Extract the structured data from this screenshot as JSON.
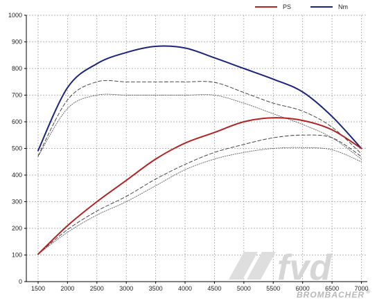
{
  "chart_data": {
    "type": "line",
    "title": "",
    "xlabel": "",
    "ylabel": "",
    "x": [
      1500,
      2000,
      2500,
      3000,
      3500,
      4000,
      4500,
      5000,
      5500,
      6000,
      6500,
      7000
    ],
    "xlim": [
      1300,
      7100
    ],
    "ylim": [
      0,
      1000
    ],
    "x_ticks": [
      1500,
      2000,
      2500,
      3000,
      3500,
      4000,
      4500,
      5000,
      5500,
      6000,
      6500,
      7000
    ],
    "y_ticks": [
      0,
      100,
      200,
      300,
      400,
      500,
      600,
      700,
      800,
      900,
      1000
    ],
    "grid": true,
    "legend_position": "top-right",
    "series": [
      {
        "name": "PS",
        "color": "#b22222",
        "style": "solid",
        "values": [
          103,
          210,
          300,
          380,
          460,
          520,
          560,
          600,
          615,
          605,
          570,
          500
        ]
      },
      {
        "name": "Nm",
        "color": "#1a237e",
        "style": "solid",
        "values": [
          492,
          728,
          818,
          860,
          883,
          877,
          840,
          800,
          760,
          712,
          620,
          500
        ]
      },
      {
        "color": "#333333",
        "style": "dashed",
        "values": [
          472,
          682,
          750,
          750,
          750,
          750,
          748,
          710,
          670,
          640,
          580,
          480
        ]
      },
      {
        "color": "#555555",
        "style": "dotted",
        "values": [
          470,
          650,
          700,
          700,
          700,
          700,
          700,
          670,
          630,
          590,
          540,
          460
        ]
      },
      {
        "color": "#333333",
        "style": "dashed",
        "values": [
          103,
          195,
          265,
          320,
          385,
          440,
          485,
          515,
          540,
          550,
          540,
          470
        ]
      },
      {
        "color": "#555555",
        "style": "dotted",
        "values": [
          103,
          185,
          250,
          300,
          360,
          420,
          460,
          485,
          500,
          503,
          495,
          450
        ]
      }
    ]
  },
  "legend": {
    "items": [
      {
        "label": "PS",
        "color": "#b22222"
      },
      {
        "label": "Nm",
        "color": "#1a237e"
      }
    ]
  },
  "watermark": {
    "logo": "fvd",
    "brand": "BROMBACHER",
    "mark": "®"
  }
}
